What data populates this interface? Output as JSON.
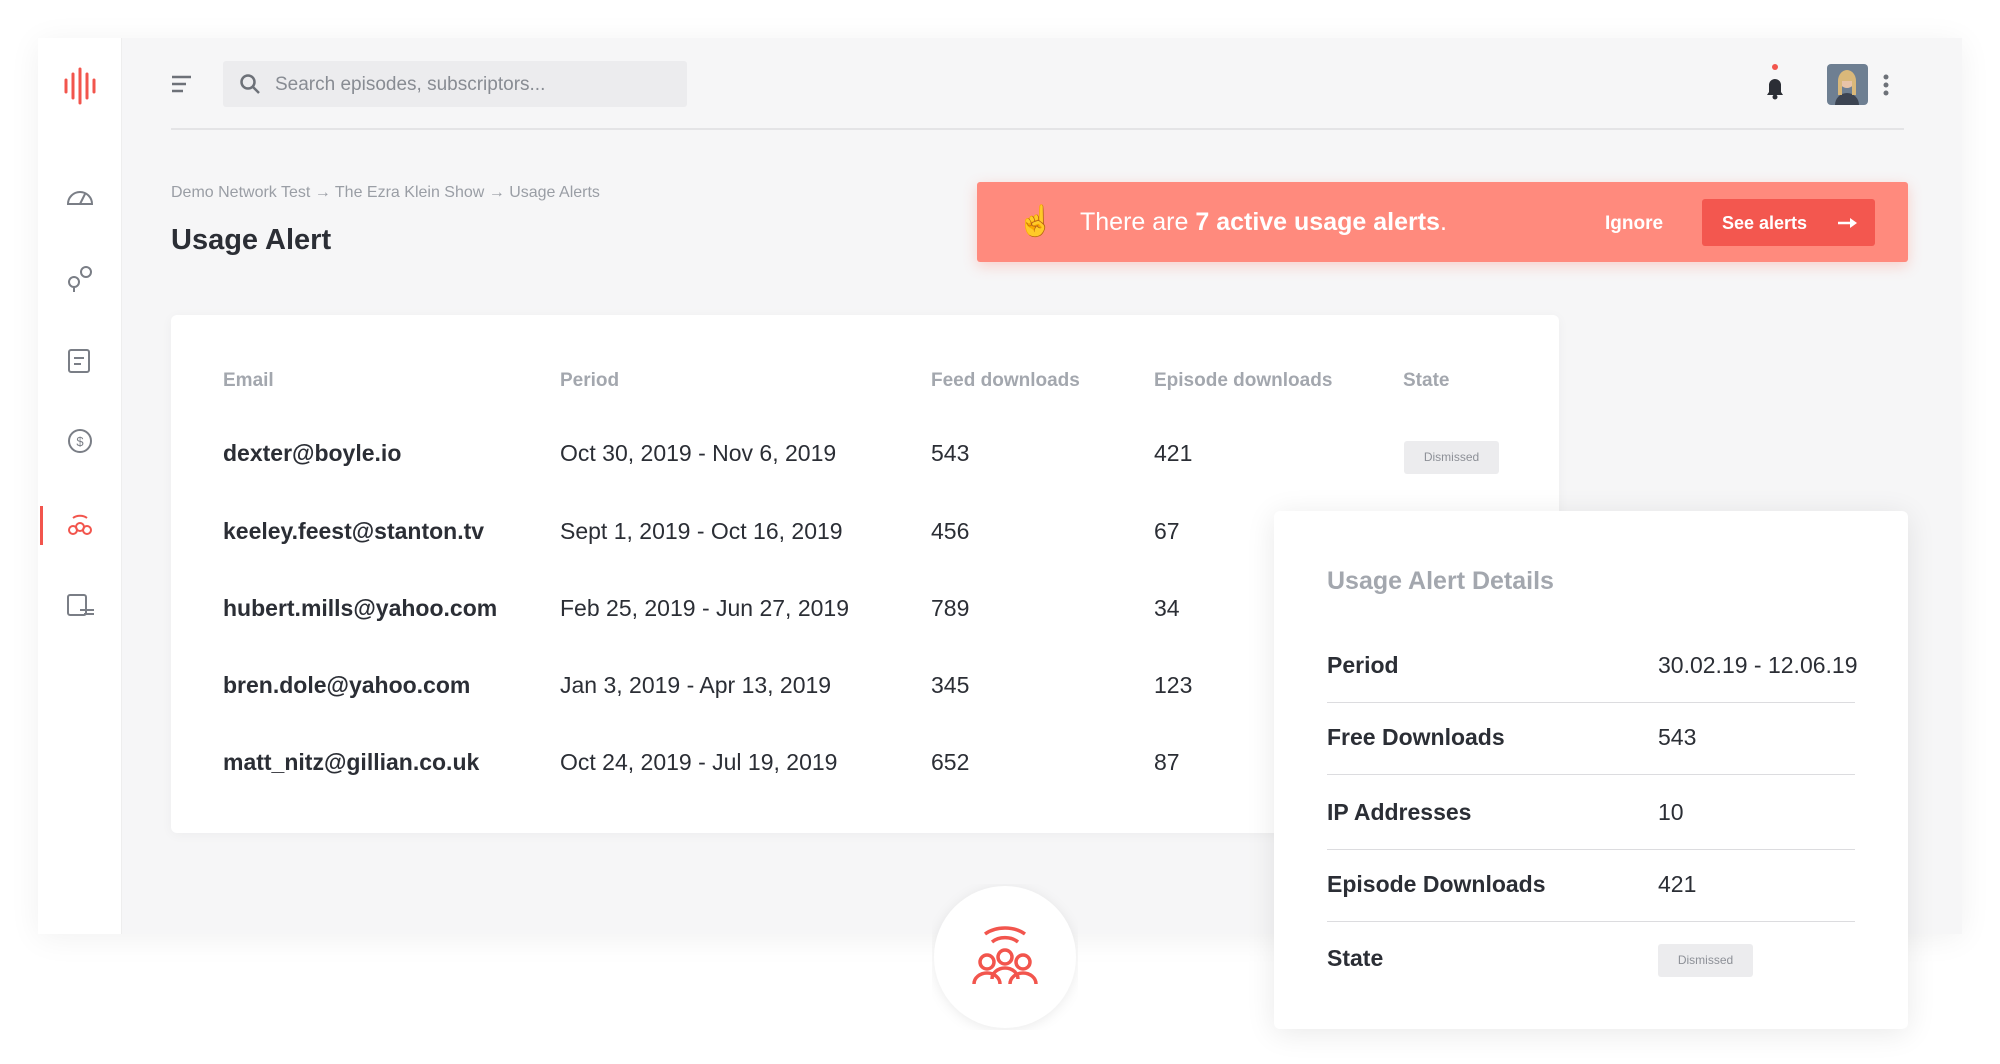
{
  "search": {
    "placeholder": "Search episodes, subscriptors..."
  },
  "header": {
    "breadcrumb": "Demo Network Test → The Ezra Klein Show → Usage Alerts",
    "title": "Usage Alert"
  },
  "alert": {
    "emoji": "☝️",
    "text_before": "There are",
    "highlight": "7 active usage alerts",
    "text_after": ".",
    "ignore": "Ignore",
    "button": "See alerts"
  },
  "table": {
    "headers": [
      "Email",
      "Period",
      "Feed downloads",
      "Episode downloads",
      "State"
    ],
    "rows": [
      [
        "dexter@boyle.io",
        "Oct 30, 2019 - Nov 6, 2019",
        543,
        421,
        "Dismissed"
      ],
      [
        "keeley.feest@stanton.tv",
        "Sept 1, 2019 - Oct 16, 2019",
        456,
        67
      ],
      [
        "hubert.mills@yahoo.com",
        "Feb 25, 2019 - Jun 27, 2019",
        789,
        34
      ],
      [
        "bren.dole@yahoo.com",
        "Jan 3, 2019 - Apr 13, 2019",
        345,
        123
      ],
      [
        "matt_nitz@gillian.co.uk",
        "Oct 24, 2019 - Jul 19, 2019",
        652,
        87
      ]
    ]
  },
  "details": {
    "title": "Usage Alert Details",
    "rows": [
      {
        "label": "Period",
        "value": "30.02.19 - 12.06.19"
      },
      {
        "label": "Free Downloads",
        "value": 543
      },
      {
        "label": "IP Addresses",
        "value": 10
      },
      {
        "label": "Episode Downloads",
        "value": 421
      },
      {
        "label": "State",
        "value": "Dismissed"
      }
    ]
  }
}
